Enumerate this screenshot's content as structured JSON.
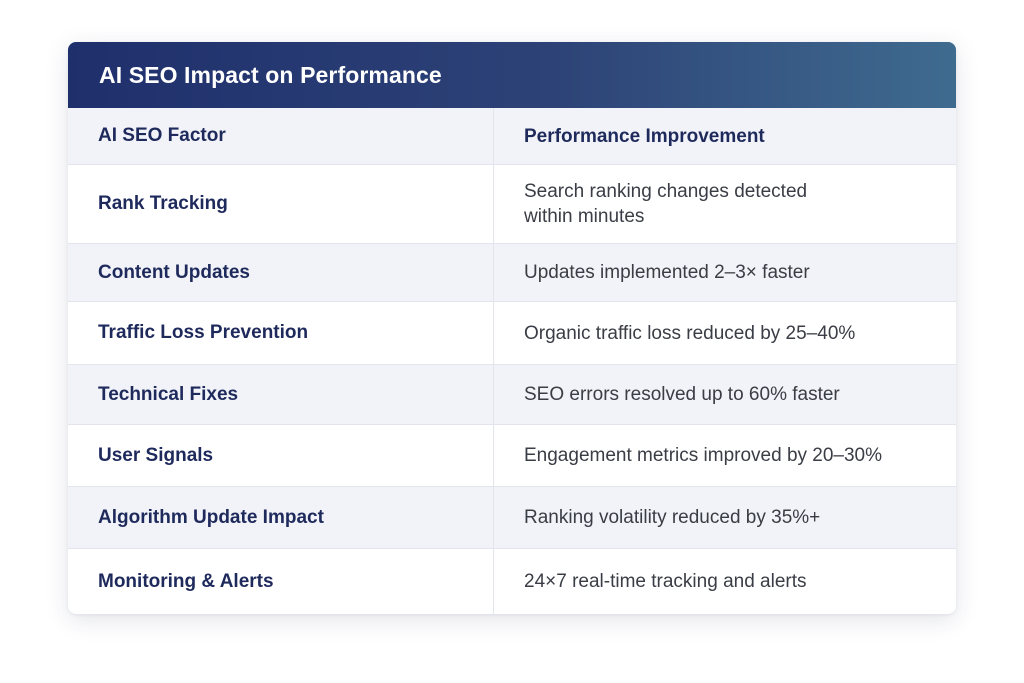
{
  "title": "AI SEO Impact on Performance",
  "colors": {
    "header_start": "#1f2f6c",
    "header_end": "#3f6b8f",
    "text_dark": "#1f2a5c",
    "row_alt": "#f1f3f8"
  },
  "table": {
    "headers": [
      "AI SEO Factor",
      "Performance Improvement"
    ],
    "rows": [
      {
        "factor": "Rank Tracking",
        "improvement": "Search ranking changes detected\nwithin minutes"
      },
      {
        "factor": "Content Updates",
        "improvement": "Updates implemented 2–3× faster"
      },
      {
        "factor": "Traffic Loss Prevention",
        "improvement": "Organic traffic loss reduced by 25–40%"
      },
      {
        "factor": "Technical Fixes",
        "improvement": "SEO errors resolved up to 60% faster"
      },
      {
        "factor": "User Signals",
        "improvement": "Engagement metrics improved by 20–30%"
      },
      {
        "factor": "Algorithm Update Impact",
        "improvement": "Ranking volatility reduced by 35%+"
      },
      {
        "factor": "Monitoring & Alerts",
        "improvement": "24×7 real-time tracking and alerts"
      }
    ]
  }
}
